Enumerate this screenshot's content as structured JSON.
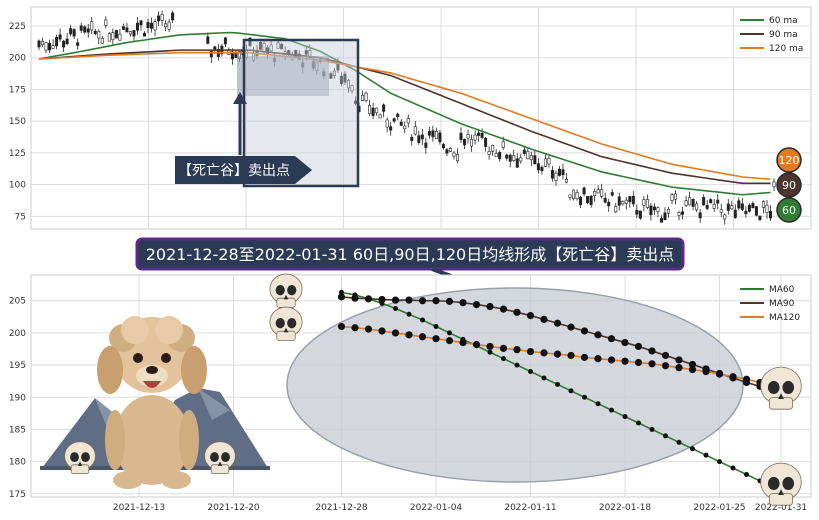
{
  "banner": {
    "text": "2021-12-28至2022-01-31 60日,90日,120日均线形成【死亡谷】卖出点"
  },
  "top_label": {
    "text": "【死亡谷】卖出点"
  },
  "badges": [
    "120",
    "90",
    "60"
  ],
  "colors": {
    "ma60": "#2e7d32",
    "ma90": "#4e342e",
    "ma120": "#e07b24",
    "grid": "#dddddd",
    "banner_bg": "#2b3a55",
    "banner_border": "#5b2a86",
    "ellipse": "#c5c9d2"
  },
  "chart_data": [
    {
      "type": "line",
      "title": "",
      "legend": {
        "position": "top-right",
        "entries": [
          "60 ma",
          "90 ma",
          "120 ma"
        ]
      },
      "grid": true,
      "ylim": [
        65,
        240
      ],
      "yticks": [
        "75",
        "100",
        "125",
        "150",
        "175",
        "200",
        "225"
      ],
      "x_count": 210,
      "series": [
        {
          "name": "60 ma",
          "color": "#2e7d32",
          "x": [
            0,
            12,
            25,
            40,
            55,
            70,
            80,
            90,
            100,
            120,
            140,
            160,
            180,
            200,
            209
          ],
          "values": [
            199,
            205,
            212,
            218,
            220,
            215,
            205,
            190,
            172,
            148,
            128,
            110,
            98,
            92,
            94
          ]
        },
        {
          "name": "90 ma",
          "color": "#4e342e",
          "x": [
            0,
            20,
            40,
            60,
            80,
            100,
            120,
            140,
            160,
            180,
            200,
            209
          ],
          "values": [
            199,
            203,
            206,
            206,
            200,
            186,
            164,
            142,
            122,
            109,
            101,
            101
          ]
        },
        {
          "name": "120 ma",
          "color": "#e07b24",
          "x": [
            0,
            20,
            40,
            60,
            80,
            100,
            120,
            140,
            160,
            180,
            200,
            209
          ],
          "values": [
            199,
            202,
            204,
            204,
            198,
            188,
            172,
            152,
            132,
            116,
            106,
            104
          ]
        }
      ]
    },
    {
      "type": "line",
      "title": "",
      "legend": {
        "position": "top-right",
        "entries": [
          "MA60",
          "MA90",
          "MA120"
        ]
      },
      "grid": true,
      "ylim": [
        174.5,
        209
      ],
      "yticks": [
        "175",
        "180",
        "185",
        "190",
        "195",
        "200",
        "205"
      ],
      "xlim": [
        0,
        56
      ],
      "xticks": [
        {
          "x": 8,
          "label": "2021-12-13"
        },
        {
          "x": 15,
          "label": "2021-12-20"
        },
        {
          "x": 23,
          "label": "2021-12-28"
        },
        {
          "x": 30,
          "label": "2022-01-04"
        },
        {
          "x": 37,
          "label": "2022-01-11"
        },
        {
          "x": 44,
          "label": "2022-01-18"
        },
        {
          "x": 51,
          "label": "2022-01-25"
        },
        {
          "x": 57,
          "label": "2022-01-31"
        }
      ],
      "series": [
        {
          "name": "MA60",
          "color": "#2e7d32",
          "x_start": 23,
          "values": [
            206.3,
            205.9,
            205.3,
            204.6,
            203.8,
            202.9,
            202.0,
            201.0,
            200.0,
            199.0,
            198.0,
            197.0,
            196.0,
            195.0,
            194.0,
            193.0,
            192.0,
            191.0,
            190.0,
            189.0,
            188.0,
            187.0,
            186.0,
            185.0,
            184.0,
            183.0,
            182.0,
            181.0,
            180.0,
            179.0,
            178.0,
            177.0,
            176.2
          ]
        },
        {
          "name": "MA90",
          "color": "#4e342e",
          "x_start": 23,
          "values": [
            205.6,
            205.4,
            205.3,
            205.2,
            205.1,
            205.1,
            205.0,
            205.0,
            204.9,
            204.7,
            204.4,
            204.1,
            203.7,
            203.2,
            202.7,
            202.1,
            201.5,
            200.9,
            200.3,
            199.7,
            199.1,
            198.5,
            197.9,
            197.2,
            196.5,
            195.8,
            195.1,
            194.4,
            193.7,
            193.0,
            192.3,
            191.7
          ]
        },
        {
          "name": "MA120",
          "color": "#e07b24",
          "x_start": 23,
          "values": [
            201.0,
            200.8,
            200.6,
            200.3,
            200.0,
            199.7,
            199.4,
            199.1,
            198.8,
            198.5,
            198.2,
            197.9,
            197.6,
            197.4,
            197.1,
            196.9,
            196.7,
            196.5,
            196.2,
            196.0,
            195.8,
            195.6,
            195.4,
            195.2,
            194.9,
            194.6,
            194.3,
            194.0,
            193.6,
            193.2,
            192.8,
            192.3
          ]
        }
      ]
    }
  ]
}
